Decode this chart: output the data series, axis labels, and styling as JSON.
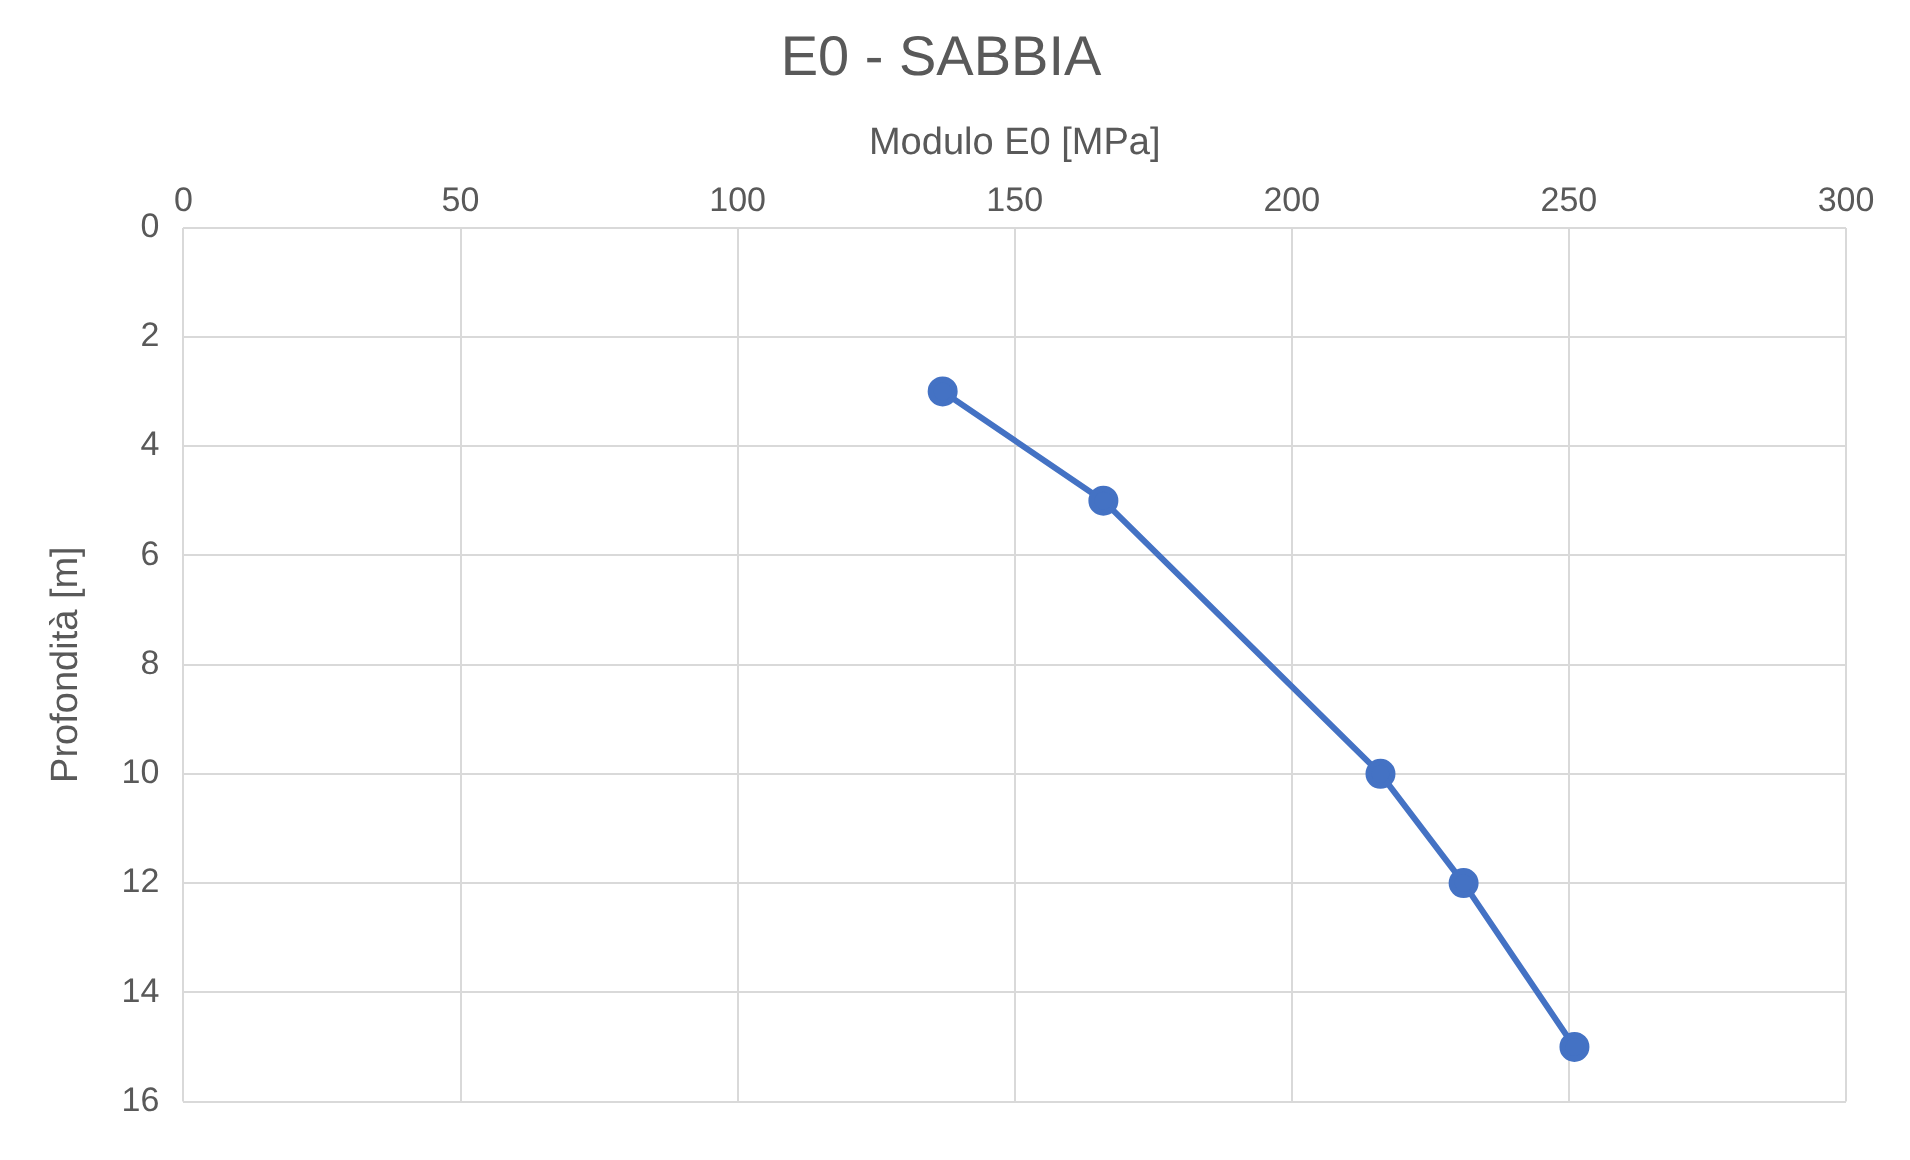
{
  "chart_data": {
    "type": "line",
    "title": "E0 - SABBIA",
    "xlabel": "Modulo E0 [MPa]",
    "ylabel": "Profondità [m]",
    "x": [
      137,
      166,
      216,
      231,
      251
    ],
    "series": [
      {
        "color": "#4472c4",
        "values": [
          3,
          5,
          10,
          12,
          15
        ]
      }
    ],
    "xlim": [
      0,
      300
    ],
    "xticks": [
      0,
      50,
      100,
      150,
      200,
      250,
      300
    ],
    "ylim": [
      16,
      0
    ],
    "yticks": [
      0,
      2,
      4,
      6,
      8,
      10,
      12,
      14,
      16
    ],
    "grid": true,
    "legend": false,
    "marker": "circle",
    "line_style": "solid"
  }
}
